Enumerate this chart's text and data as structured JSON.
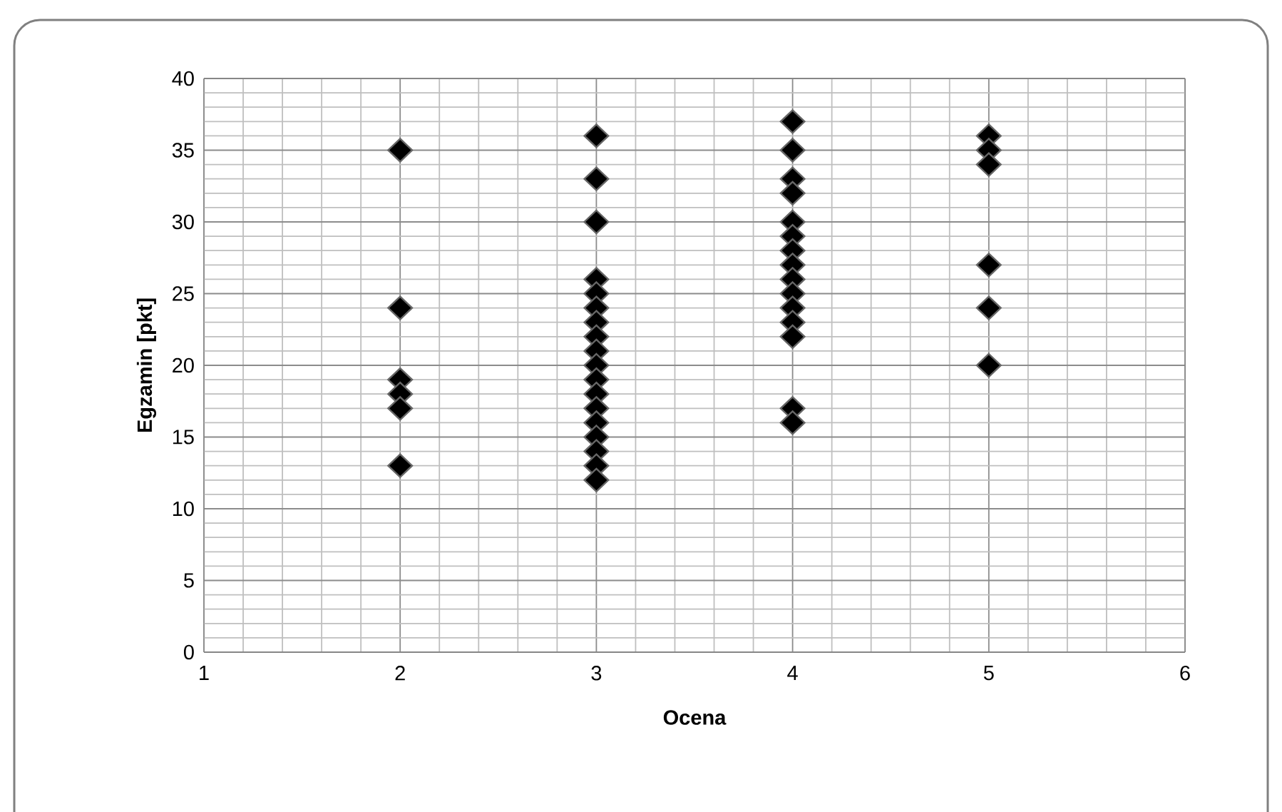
{
  "chart_data": {
    "type": "scatter",
    "xlabel": "Ocena",
    "ylabel": "Egzamin [pkt]",
    "x": [
      2,
      2,
      2,
      2,
      2,
      2,
      3,
      3,
      3,
      3,
      3,
      3,
      3,
      3,
      3,
      3,
      3,
      3,
      3,
      3,
      3,
      3,
      3,
      3,
      4,
      4,
      4,
      4,
      4,
      4,
      4,
      4,
      4,
      4,
      4,
      4,
      4,
      4,
      4,
      5,
      5,
      5,
      5,
      5,
      5
    ],
    "series": [
      {
        "color": "#000000",
        "values": [
          35,
          24,
          19,
          18,
          17,
          13,
          36,
          33,
          30,
          26,
          25,
          24,
          23,
          22,
          21,
          20,
          19,
          18,
          17,
          16,
          15,
          14,
          13,
          12,
          37,
          35,
          33,
          32,
          30,
          29,
          28,
          27,
          26,
          25,
          24,
          23,
          22,
          17,
          16,
          36,
          35,
          34,
          27,
          24,
          20
        ]
      }
    ],
    "xlim": [
      1,
      6
    ],
    "xticks": [
      1,
      2,
      3,
      4,
      5,
      6
    ],
    "ylim": [
      0,
      40
    ],
    "yticks": [
      0,
      5,
      10,
      15,
      20,
      25,
      30,
      35,
      40
    ],
    "grid": true,
    "marker": "diamond"
  }
}
